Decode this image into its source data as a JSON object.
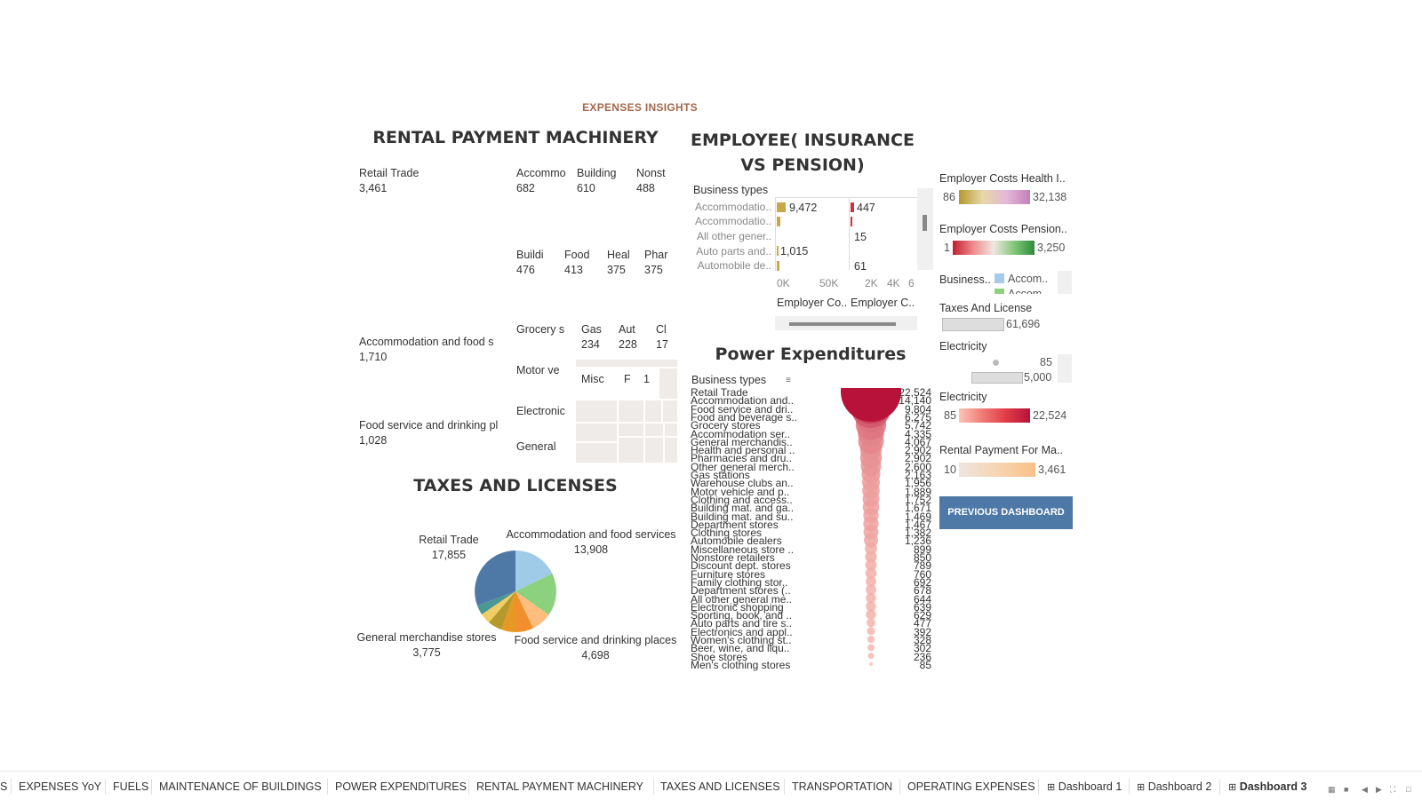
{
  "header": {
    "title": "EXPENSES INSIGHTS"
  },
  "rental": {
    "title": "RENTAL PAYMENT MACHINERY",
    "cells": [
      {
        "label": "Retail Trade",
        "value": "3,461",
        "color": "#fbcfa0"
      },
      {
        "label": "Accommodation and food s",
        "value": "1,710",
        "color": "#f4dcc6"
      },
      {
        "label": "Food service and drinking pl",
        "value": "1,028",
        "color": "#f1e0d0"
      },
      {
        "label": "Accommo",
        "value": "682",
        "color": "#eee2d6"
      },
      {
        "label": "Building",
        "value": "610",
        "color": "#efe3d9"
      },
      {
        "label": "Nonst",
        "value": "488",
        "color": "#efe6de"
      },
      {
        "label": "Buildi",
        "value": "476",
        "color": "#efe6de"
      },
      {
        "label": "Food",
        "value": "413",
        "color": "#efe7e0"
      },
      {
        "label": "Heal",
        "value": "375",
        "color": "#efe7e1"
      },
      {
        "label": "Phar",
        "value": "375",
        "color": "#efe7e1"
      },
      {
        "label": "Grocery s",
        "value": "",
        "color": "#eee9e5"
      },
      {
        "label": "Gas",
        "value": "234",
        "color": "#efeae6"
      },
      {
        "label": "Aut",
        "value": "228",
        "color": "#efeae6"
      },
      {
        "label": "Cl",
        "value": "17",
        "color": "#efeae6"
      },
      {
        "label": "Motor ve",
        "value": "",
        "color": "#efebe8"
      },
      {
        "label": "Misc",
        "value": "",
        "color": "#efebe8"
      },
      {
        "label": "F",
        "value": "",
        "color": "#efebe8"
      },
      {
        "label": "1",
        "value": "",
        "color": "#efebe8"
      },
      {
        "label": "Electronic",
        "value": "",
        "color": "#efebe8"
      },
      {
        "label": "General",
        "value": "",
        "color": "#efebe8"
      }
    ]
  },
  "taxes": {
    "title": "TAXES AND LICENSES",
    "labels": [
      {
        "name": "Retail Trade",
        "value": "17,855"
      },
      {
        "name": "Accommodation and food services",
        "value": "13,908"
      },
      {
        "name": "General merchandise stores",
        "value": "3,775"
      },
      {
        "name": "Food service and drinking places",
        "value": "4,698"
      }
    ]
  },
  "employee": {
    "title_line1": "EMPLOYEE( INSURANCE",
    "title_line2": "VS PENSION)",
    "header": "Business types",
    "rows": [
      "Accommodatio..",
      "Accommodatio..",
      "All other gener..",
      "Auto parts and..",
      "Automobile de.."
    ],
    "health_values": [
      "9,472",
      "",
      "",
      "1,015",
      ""
    ],
    "pension_values": [
      "447",
      "",
      "15",
      "",
      "61"
    ],
    "health_ticks": [
      "0K",
      "50K"
    ],
    "pension_ticks": [
      "2K",
      "4K",
      "6"
    ],
    "col1": "Employer Co..",
    "col2": "Employer C.."
  },
  "power": {
    "title": "Power Expenditures",
    "header": "Business types",
    "rows": [
      {
        "name": "Retail Trade",
        "value": "22,524"
      },
      {
        "name": "Accommodation and..",
        "value": "14,140"
      },
      {
        "name": "Food service and dri..",
        "value": "9,804"
      },
      {
        "name": "Food and beverage s..",
        "value": "6,275"
      },
      {
        "name": "Grocery stores",
        "value": "5,742"
      },
      {
        "name": "Accommodation ser..",
        "value": "4,335"
      },
      {
        "name": "General merchandis..",
        "value": "4,067"
      },
      {
        "name": "Health and personal ..",
        "value": "2,902"
      },
      {
        "name": "Pharmacies and dru..",
        "value": "2,902"
      },
      {
        "name": "Other general merch..",
        "value": "2,600"
      },
      {
        "name": "Gas stations",
        "value": "2,163"
      },
      {
        "name": "Warehouse clubs an..",
        "value": "1,956"
      },
      {
        "name": "Motor vehicle and p..",
        "value": "1,889"
      },
      {
        "name": "Clothing and access..",
        "value": "1,752"
      },
      {
        "name": "Building mat. and ga..",
        "value": "1,671"
      },
      {
        "name": "Building mat. and su..",
        "value": "1,469"
      },
      {
        "name": "Department stores",
        "value": "1,467"
      },
      {
        "name": "Clothing stores",
        "value": "1,382"
      },
      {
        "name": "Automobile dealers",
        "value": "1,236"
      },
      {
        "name": "Miscellaneous store ..",
        "value": "899"
      },
      {
        "name": "Nonstore retailers",
        "value": "850"
      },
      {
        "name": "Discount dept. stores",
        "value": "789"
      },
      {
        "name": "Furniture stores",
        "value": "760"
      },
      {
        "name": "Family clothing stor..",
        "value": "692"
      },
      {
        "name": "Department stores (..",
        "value": "678"
      },
      {
        "name": "All other general me..",
        "value": "644"
      },
      {
        "name": "Electronic shopping",
        "value": "639"
      },
      {
        "name": "Sporting, book, and ..",
        "value": "629"
      },
      {
        "name": "Auto parts and tire s..",
        "value": "477"
      },
      {
        "name": "Electronics and appl..",
        "value": "392"
      },
      {
        "name": "Women's clothing st..",
        "value": "328"
      },
      {
        "name": "Beer, wine, and liqu..",
        "value": "302"
      },
      {
        "name": "Shoe stores",
        "value": "236"
      },
      {
        "name": "Men's clothing stores",
        "value": "85"
      }
    ]
  },
  "legends": {
    "health": {
      "title": "Employer Costs Health I..",
      "min": "86",
      "max": "32,138"
    },
    "pension": {
      "title": "Employer Costs Pension..",
      "min": "1",
      "max": "3,250"
    },
    "business": {
      "title": "Business..",
      "item1": "Accom..",
      "item2": "Accom..",
      "color1": "#a6cbe8",
      "color2": "#8fd07c"
    },
    "taxes": {
      "title": "Taxes And License",
      "value": "61,696"
    },
    "electricity_size": {
      "title": "Electricity",
      "v1": "85",
      "v2": "5,000"
    },
    "electricity_color": {
      "title": "Electricity",
      "min": "85",
      "max": "22,524"
    },
    "rental": {
      "title": "Rental Payment For Ma..",
      "min": "10",
      "max": "3,461"
    }
  },
  "button": {
    "label": "PREVIOUS DASHBOARD"
  },
  "tabs": {
    "items": [
      "S",
      "EXPENSES YoY",
      "FUELS",
      "MAINTENANCE OF BUILDINGS",
      "POWER EXPENDITURES",
      "RENTAL PAYMENT MACHINERY",
      "TAXES AND LICENSES",
      "TRANSPORTATION",
      "OPERATING EXPENSES",
      "Dashboard 1",
      "Dashboard 2",
      "Dashboard 3"
    ],
    "active": "Dashboard 3"
  }
}
